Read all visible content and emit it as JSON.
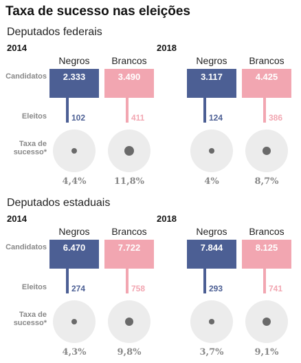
{
  "title": "Taxa de sucesso nas eleições",
  "row_labels": {
    "candidatos": "Candidatos",
    "eleitos": "Eleitos",
    "taxa_line1": "Taxa de",
    "taxa_line2": "sucesso*"
  },
  "colors": {
    "negros": "#4c5f94",
    "brancos": "#f2a6b1",
    "circle": "#ececec",
    "dot": "#6a6a6a"
  },
  "chart_data": [
    {
      "type": "table",
      "title": "Deputados federais",
      "groups": [
        {
          "year": "2014",
          "columns": [
            {
              "label": "Negros",
              "candidatos": "2.333",
              "eleitos": "102",
              "taxa": "4,4%",
              "taxa_value": 4.4
            },
            {
              "label": "Brancos",
              "candidatos": "3.490",
              "eleitos": "411",
              "taxa": "11,8%",
              "taxa_value": 11.8
            }
          ]
        },
        {
          "year": "2018",
          "columns": [
            {
              "label": "Negros",
              "candidatos": "3.117",
              "eleitos": "124",
              "taxa": "4%",
              "taxa_value": 4.0
            },
            {
              "label": "Brancos",
              "candidatos": "4.425",
              "eleitos": "386",
              "taxa": "8,7%",
              "taxa_value": 8.7
            }
          ]
        }
      ]
    },
    {
      "type": "table",
      "title": "Deputados estaduais",
      "groups": [
        {
          "year": "2014",
          "columns": [
            {
              "label": "Negros",
              "candidatos": "6.470",
              "eleitos": "274",
              "taxa": "4,3%",
              "taxa_value": 4.3
            },
            {
              "label": "Brancos",
              "candidatos": "7.722",
              "eleitos": "758",
              "taxa": "9,8%",
              "taxa_value": 9.8
            }
          ]
        },
        {
          "year": "2018",
          "columns": [
            {
              "label": "Negros",
              "candidatos": "7.844",
              "eleitos": "293",
              "taxa": "3,7%",
              "taxa_value": 3.7
            },
            {
              "label": "Brancos",
              "candidatos": "8.125",
              "eleitos": "741",
              "taxa": "9,1%",
              "taxa_value": 9.1
            }
          ]
        }
      ]
    }
  ]
}
